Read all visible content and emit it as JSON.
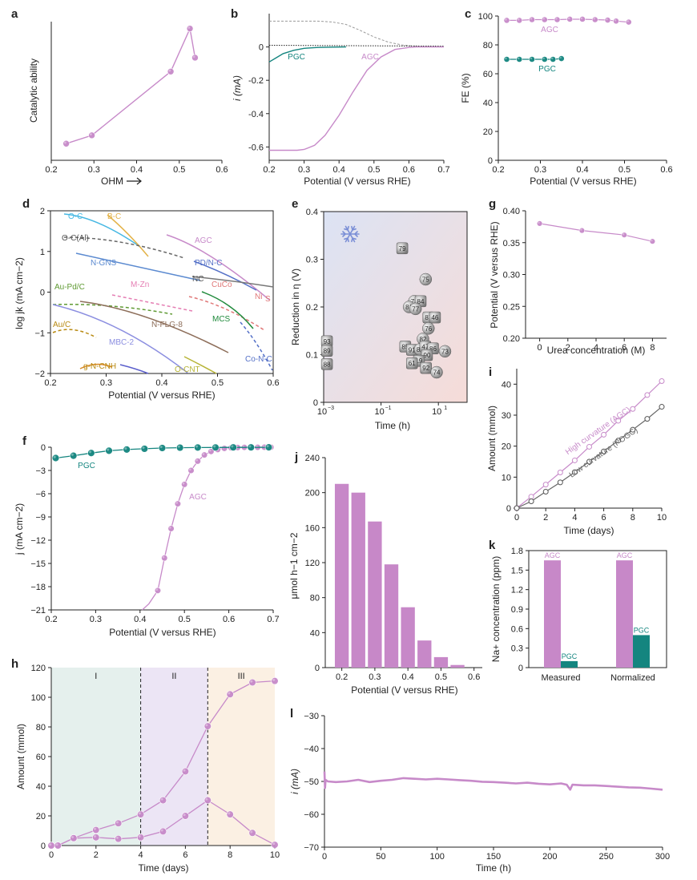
{
  "figure": {
    "panels": {
      "a": {
        "letter": "a"
      },
      "b": {
        "letter": "b"
      },
      "c": {
        "letter": "c"
      },
      "d": {
        "letter": "d"
      },
      "e": {
        "letter": "e"
      },
      "g": {
        "letter": "g"
      },
      "f": {
        "letter": "f"
      },
      "i": {
        "letter": "i"
      },
      "j": {
        "letter": "j"
      },
      "k": {
        "letter": "k"
      },
      "h": {
        "letter": "h"
      },
      "l": {
        "letter": "l"
      }
    },
    "colors": {
      "agc": "#c78ac9",
      "pgc": "#14857f",
      "grey": "#777777",
      "bar": "#c788c8",
      "dash": "#999999"
    }
  },
  "chart_data": [
    {
      "id": "a",
      "type": "line",
      "xlabel": "OHM",
      "ylabel": "Catalytic ability",
      "xlim": [
        0.2,
        0.6
      ],
      "ylim": [
        0,
        1
      ],
      "ticks_x": [
        "0.2",
        "0.3",
        "0.4",
        "0.5",
        "0.6"
      ],
      "series": [
        {
          "x": [
            0.235,
            0.295,
            0.48,
            0.525,
            0.537
          ],
          "y": [
            0.12,
            0.18,
            0.64,
            0.95,
            0.74
          ]
        }
      ]
    },
    {
      "id": "b",
      "type": "line",
      "xlabel": "Potential (V versus RHE)",
      "ylabel": "i (mA)",
      "xlim": [
        0.2,
        0.7
      ],
      "ylim": [
        -0.68,
        0.2
      ],
      "ticks_x": [
        "0.2",
        "0.3",
        "0.4",
        "0.5",
        "0.6",
        "0.7"
      ],
      "ticks_y": [
        "0",
        "-0.2",
        "-0.4",
        "-0.6"
      ],
      "labels": {
        "agc": "AGC",
        "pgc": "PGC"
      },
      "series": [
        {
          "name": "AGC",
          "x": [
            0.2,
            0.28,
            0.3,
            0.33,
            0.36,
            0.4,
            0.44,
            0.48,
            0.52,
            0.56,
            0.6,
            0.62,
            0.7
          ],
          "y": [
            -0.62,
            -0.62,
            -0.615,
            -0.59,
            -0.53,
            -0.41,
            -0.27,
            -0.14,
            -0.06,
            -0.015,
            -0.003,
            0,
            0
          ]
        },
        {
          "name": "PGC",
          "x": [
            0.2,
            0.22,
            0.24,
            0.27,
            0.3,
            0.34,
            0.38,
            0.42
          ],
          "y": [
            -0.09,
            -0.065,
            -0.04,
            -0.02,
            -0.008,
            -0.003,
            -0.001,
            0
          ]
        },
        {
          "name": "AGC dashed",
          "x": [
            0.2,
            0.34,
            0.38,
            0.42,
            0.46,
            0.5,
            0.54,
            0.58,
            0.62,
            0.7
          ],
          "y": [
            0.155,
            0.155,
            0.15,
            0.135,
            0.1,
            0.06,
            0.03,
            0.012,
            0.004,
            0.002
          ]
        },
        {
          "name": "PGC dotted",
          "x": [
            0.2,
            0.7
          ],
          "y": [
            0.01,
            0.005
          ]
        }
      ]
    },
    {
      "id": "c",
      "type": "line",
      "xlabel": "Potential (V versus RHE)",
      "ylabel": "FE (%)",
      "xlim": [
        0.2,
        0.6
      ],
      "ylim": [
        0,
        100
      ],
      "ticks_x": [
        "0.2",
        "0.3",
        "0.4",
        "0.5",
        "0.6"
      ],
      "ticks_y": [
        "100",
        "80",
        "60",
        "40",
        "20",
        "0"
      ],
      "series": [
        {
          "name": "AGC",
          "x": [
            0.22,
            0.25,
            0.28,
            0.31,
            0.34,
            0.37,
            0.4,
            0.43,
            0.46,
            0.48,
            0.51
          ],
          "y": [
            97,
            97,
            97.5,
            97.5,
            97.5,
            97.8,
            97.8,
            97.5,
            97.2,
            96.5,
            95.8
          ]
        },
        {
          "name": "PGC",
          "x": [
            0.22,
            0.25,
            0.28,
            0.31,
            0.33,
            0.35
          ],
          "y": [
            70,
            70,
            70,
            70,
            70,
            70.5
          ]
        }
      ]
    },
    {
      "id": "d",
      "type": "line",
      "xlabel": "Potential (V versus RHE)",
      "ylabel": "log jk (mA cm−2)",
      "xlim": [
        0.2,
        0.6
      ],
      "ylim": [
        -2,
        2
      ],
      "ticks_x": [
        "0.2",
        "0.3",
        "0.4",
        "0.5",
        "0.6"
      ],
      "ticks_y": [
        "2",
        "1",
        "0",
        "−1",
        "−2"
      ],
      "labels": [
        "O-C",
        "B-C",
        "O-C(Al)",
        "N-GNS",
        "AGC",
        "PD/N-C",
        "NC",
        "Au-Pd/C",
        "M-Zn",
        "CuCo",
        "Ni",
        "S",
        "MCS",
        "Au/C",
        "N-FLG-8",
        "MBC-2",
        "Co-N-C",
        "g-N-CNH",
        "O-CNT"
      ]
    },
    {
      "id": "e",
      "type": "scatter",
      "xlabel": "Time (h)",
      "ylabel": "Reduction in η (V)",
      "xlim": [
        0.001,
        100
      ],
      "ylim": [
        0,
        0.4
      ],
      "xscale": "log",
      "ticks_x": [
        "10",
        "10",
        "10"
      ],
      "ticks_x_exp": [
        "−3",
        "−1",
        "1"
      ],
      "ticks_y": [
        "0.4",
        "0.3",
        "0.2",
        "0.1",
        "0"
      ],
      "points": [
        {
          "label": "79",
          "x": 0.55,
          "y": 0.323
        },
        {
          "label": "75",
          "x": 3.6,
          "y": 0.258
        },
        {
          "label": "78",
          "x": 1.45,
          "y": 0.212
        },
        {
          "label": "84",
          "x": 2.4,
          "y": 0.212
        },
        {
          "label": "81",
          "x": 0.95,
          "y": 0.2
        },
        {
          "label": "77",
          "x": 1.6,
          "y": 0.196
        },
        {
          "label": "87",
          "x": 4.5,
          "y": 0.178
        },
        {
          "label": "46",
          "x": 7.6,
          "y": 0.178
        },
        {
          "label": "76",
          "x": 4.5,
          "y": 0.155
        },
        {
          "label": "82",
          "x": 2.9,
          "y": 0.133
        },
        {
          "label": "85",
          "x": 0.7,
          "y": 0.117
        },
        {
          "label": "91",
          "x": 1.2,
          "y": 0.11
        },
        {
          "label": "80",
          "x": 2.3,
          "y": 0.111
        },
        {
          "label": "47",
          "x": 3.5,
          "y": 0.117
        },
        {
          "label": "86",
          "x": 6.5,
          "y": 0.113
        },
        {
          "label": "73",
          "x": 17,
          "y": 0.107
        },
        {
          "label": "90",
          "x": 4.0,
          "y": 0.099
        },
        {
          "label": "19",
          "x": 2.1,
          "y": 0.087
        },
        {
          "label": "61",
          "x": 1.2,
          "y": 0.082
        },
        {
          "label": "92",
          "x": 3.7,
          "y": 0.072
        },
        {
          "label": "74",
          "x": 8.7,
          "y": 0.063
        },
        {
          "label": "93",
          "x": 0.0013,
          "y": 0.128
        },
        {
          "label": "89",
          "x": 0.0013,
          "y": 0.108
        },
        {
          "label": "88",
          "x": 0.0013,
          "y": 0.08
        }
      ]
    },
    {
      "id": "g",
      "type": "line",
      "xlabel": "Urea concentration (M)",
      "ylabel": "Potential (V versus RHE)",
      "xlim": [
        -1,
        9
      ],
      "ylim": [
        0.2,
        0.4
      ],
      "ticks_x": [
        "0",
        "2",
        "4",
        "6",
        "8"
      ],
      "ticks_y": [
        "0.40",
        "0.35",
        "0.30",
        "0.25",
        "0.20"
      ],
      "series": [
        {
          "x": [
            0,
            3,
            6,
            8
          ],
          "y": [
            0.38,
            0.369,
            0.362,
            0.352
          ]
        }
      ]
    },
    {
      "id": "f",
      "type": "line",
      "xlabel": "Potential (V versus RHE)",
      "ylabel": "j (mA cm−2)",
      "xlim": [
        0.2,
        0.7
      ],
      "ylim": [
        -21,
        0
      ],
      "ticks_x": [
        "0.2",
        "0.3",
        "0.4",
        "0.5",
        "0.6",
        "0.7"
      ],
      "ticks_y": [
        "0",
        "−3",
        "−6",
        "−9",
        "−12",
        "−15",
        "−18",
        "−21"
      ],
      "labels": {
        "agc": "AGC",
        "pgc": "PGC"
      },
      "series": [
        {
          "name": "PGC",
          "x": [
            0.21,
            0.25,
            0.29,
            0.33,
            0.37,
            0.41,
            0.45,
            0.49,
            0.53,
            0.57,
            0.61,
            0.65,
            0.69
          ],
          "y": [
            -1.4,
            -1.1,
            -0.75,
            -0.45,
            -0.3,
            -0.2,
            -0.1,
            -0.06,
            -0.04,
            -0.03,
            -0.02,
            -0.02,
            -0.01
          ]
        },
        {
          "name": "AGC",
          "x": [
            0.44,
            0.455,
            0.47,
            0.485,
            0.5,
            0.515,
            0.53,
            0.545,
            0.56,
            0.575,
            0.59,
            0.605,
            0.62,
            0.635,
            0.65,
            0.665,
            0.68,
            0.695
          ],
          "y": [
            -18.5,
            -14.3,
            -10.5,
            -7.3,
            -4.8,
            -3.0,
            -1.8,
            -1.0,
            -0.55,
            -0.3,
            -0.15,
            -0.08,
            -0.04,
            -0.02,
            -0.01,
            -0.01,
            -0.005,
            0
          ]
        }
      ]
    },
    {
      "id": "i",
      "type": "line",
      "xlabel": "Time (days)",
      "ylabel": "Amount (mmol)",
      "xlim": [
        0,
        10
      ],
      "ylim": [
        0,
        45
      ],
      "ticks_x": [
        "0",
        "2",
        "4",
        "6",
        "8",
        "10"
      ],
      "ticks_y": [
        "40",
        "30",
        "20",
        "10",
        "0"
      ],
      "labels": {
        "high": "High curvature (AGC)",
        "low": "Low curvature (POGC)"
      },
      "series": [
        {
          "name": "High curvature (AGC)",
          "x": [
            0,
            1,
            2,
            3,
            4,
            5,
            6,
            7,
            8,
            9,
            10
          ],
          "y": [
            0,
            3.7,
            7.6,
            11.5,
            15.4,
            19.8,
            23.7,
            28.2,
            32,
            36.5,
            41
          ]
        },
        {
          "name": "Low curvature (POGC)",
          "x": [
            0,
            1,
            2,
            3,
            4,
            5,
            6,
            7,
            8,
            9,
            10
          ],
          "y": [
            0,
            2.2,
            5.3,
            8.3,
            11.6,
            15,
            18.3,
            21.8,
            25.3,
            28.8,
            32.7
          ]
        }
      ]
    },
    {
      "id": "j",
      "type": "bar",
      "xlabel": "Potential (V versus RHE)",
      "ylabel": "μmol h−1 cm−2",
      "xlim": [
        0.15,
        0.625
      ],
      "ylim": [
        0,
        240
      ],
      "ticks_x": [
        "0.2",
        "0.3",
        "0.4",
        "0.5",
        "0.6"
      ],
      "ticks_y": [
        "240",
        "200",
        "160",
        "120",
        "80",
        "40",
        "0"
      ],
      "x": [
        0.2,
        0.25,
        0.3,
        0.35,
        0.4,
        0.45,
        0.5,
        0.55
      ],
      "values": [
        210,
        200,
        167,
        118,
        69,
        31,
        12,
        3
      ]
    },
    {
      "id": "k",
      "type": "bar",
      "ylabel": "Na+ concentration (ppm)",
      "ylim": [
        0,
        1.8
      ],
      "ticks_y": [
        "1.8",
        "1.5",
        "1.2",
        "0.9",
        "0.6",
        "0.3",
        "0"
      ],
      "categories": [
        "Measured",
        "Normalized"
      ],
      "series": [
        {
          "name": "AGC",
          "values": [
            1.65,
            1.65
          ]
        },
        {
          "name": "PGC",
          "values": [
            0.1,
            0.5
          ]
        }
      ]
    },
    {
      "id": "h",
      "type": "line",
      "xlabel": "Time (days)",
      "ylabel": "Amount (mmol)",
      "xlim": [
        0,
        10
      ],
      "ylim": [
        0,
        120
      ],
      "ticks_x": [
        "0",
        "2",
        "4",
        "6",
        "8",
        "10"
      ],
      "ticks_y": [
        "120",
        "100",
        "80",
        "60",
        "40",
        "20",
        "0"
      ],
      "regions": [
        {
          "label": "I",
          "x": [
            0,
            4
          ]
        },
        {
          "label": "II",
          "x": [
            4,
            7
          ]
        },
        {
          "label": "III",
          "x": [
            7,
            10
          ]
        }
      ],
      "series": [
        {
          "name": "upper",
          "x": [
            0,
            0.3,
            1,
            2,
            3,
            4,
            5,
            6,
            7,
            8,
            9,
            10
          ],
          "y": [
            0,
            0,
            5,
            10.5,
            15,
            21,
            30.5,
            50,
            80.5,
            102,
            110,
            111
          ]
        },
        {
          "name": "lower",
          "x": [
            0,
            0.3,
            1,
            2,
            3,
            4,
            5,
            6,
            7,
            8,
            9,
            10
          ],
          "y": [
            0,
            0,
            5,
            5.5,
            4.5,
            5.5,
            9.5,
            20,
            30.5,
            21,
            8.5,
            0.5
          ]
        }
      ]
    },
    {
      "id": "l",
      "type": "line",
      "xlabel": "Time (h)",
      "ylabel": "i (mA)",
      "xlim": [
        0,
        300
      ],
      "ylim": [
        -70,
        -30
      ],
      "ticks_x": [
        "0",
        "50",
        "100",
        "150",
        "200",
        "250",
        "300"
      ],
      "ticks_y": [
        "−30",
        "−40",
        "−50",
        "−60",
        "−70"
      ],
      "series": [
        {
          "x": [
            0,
            0.5,
            1,
            3,
            10,
            20,
            30,
            40,
            50,
            60,
            70,
            80,
            90,
            100,
            110,
            120,
            130,
            140,
            150,
            160,
            170,
            180,
            190,
            200,
            210,
            215,
            218,
            220,
            230,
            240,
            250,
            260,
            270,
            280,
            290,
            300
          ],
          "y": [
            -47,
            -52,
            -49.5,
            -50,
            -50.2,
            -50,
            -49.5,
            -50.2,
            -49.8,
            -49.5,
            -49,
            -49.2,
            -49.4,
            -49.2,
            -49.4,
            -49.6,
            -49.8,
            -50.1,
            -50.2,
            -50.4,
            -50.6,
            -50.4,
            -50.7,
            -50.9,
            -50.6,
            -51,
            -52.5,
            -51,
            -51.2,
            -51.2,
            -51.4,
            -51.6,
            -51.8,
            -51.9,
            -52.2,
            -52.5
          ]
        }
      ]
    }
  ]
}
